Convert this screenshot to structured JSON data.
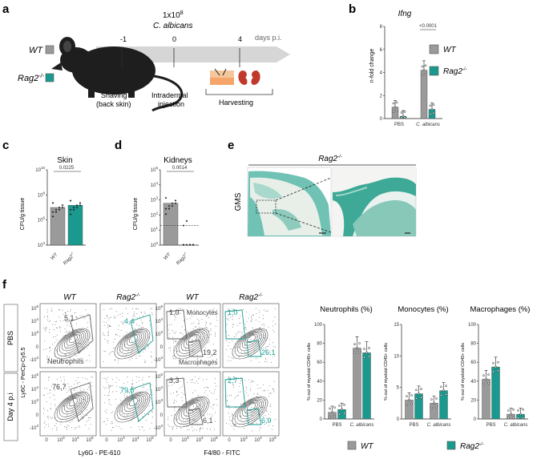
{
  "colors": {
    "wt": "#9a9a9a",
    "rag2": "#1a9a8e",
    "cyan_label": "#1aa39a",
    "timeline": "#d4d4d4",
    "micro_bg": "#cfe3df"
  },
  "panel_a": {
    "label": "a",
    "dose_line1": "1x10",
    "dose_exp": "8",
    "dose_line2": "C. albicans",
    "legend_wt": "WT",
    "legend_rag2": "Rag2",
    "legend_rag2_sup": "-/-",
    "timeline_ticks": [
      "-1",
      "0",
      "4"
    ],
    "timeline_unit": "days p.i.",
    "step1_line1": "Shaving",
    "step1_line2": "(back skin)",
    "step2_line1": "Intradermal",
    "step2_line2": "injection",
    "step3": "Harvesting"
  },
  "panel_b": {
    "label": "b",
    "chart_data": {
      "type": "bar",
      "title": "Ifng",
      "ylabel": "n-fold change",
      "categories": [
        "PBS",
        "C. albicans"
      ],
      "series": [
        {
          "name": "WT",
          "values": [
            1.0,
            4.2
          ]
        },
        {
          "name": "Rag2-/-",
          "values": [
            0.2,
            0.8
          ]
        }
      ],
      "ylim": [
        0,
        8
      ],
      "yticks": [
        "0",
        "2",
        "4",
        "6",
        "8"
      ],
      "annotation": "<0.0001"
    },
    "legend_wt": "WT",
    "legend_rag2": "Rag2",
    "legend_rag2_sup": "-/-"
  },
  "panel_c": {
    "label": "c",
    "chart_data": {
      "type": "bar",
      "title": "Skin",
      "ylabel": "CFU/g tissue",
      "categories": [
        "WT",
        "Rag2-/-"
      ],
      "values": [
        10000000.0,
        15000000.0
      ],
      "scale": "log",
      "ylim": [
        10000.0,
        10000000000.0
      ],
      "yticks": [
        "10^4",
        "10^6",
        "10^8",
        "10^10"
      ],
      "annotation": "0.0225"
    }
  },
  "panel_d": {
    "label": "d",
    "chart_data": {
      "type": "bar",
      "title": "Kidneys",
      "ylabel": "CFU/g tissue",
      "categories": [
        "WT",
        "Rag2-/-"
      ],
      "values": [
        600,
        1
      ],
      "scale": "log",
      "ylim": [
        1,
        100000.0
      ],
      "yticks": [
        "10^0",
        "10^1",
        "10^2",
        "10^3",
        "10^4",
        "10^5"
      ],
      "annotation": "0.0014"
    }
  },
  "panel_e": {
    "label": "e",
    "title": "Rag2",
    "title_sup": "-/-",
    "side_label": "GMS"
  },
  "panel_f": {
    "label": "f",
    "col_wt": "WT",
    "col_rag2": "Rag2",
    "col_rag2_sup": "-/-",
    "row_pbs": "PBS",
    "row_day4": "Day 4 p.i",
    "yaxis_label": "Ly6C - PerCp-Cy5.5",
    "xaxis_label1": "Ly6G - PE-610",
    "xaxis_label2": "F4/80 - FITC",
    "gates": {
      "pbs_wt_neut": "5,1",
      "pbs_rag_neut": "4,4",
      "day4_wt_neut": "76,7",
      "day4_rag_neut": "79,6",
      "pbs_wt_mono": "1,0",
      "pbs_wt_mac": "19,2",
      "pbs_rag_mono": "1,0",
      "pbs_rag_mac": "26,1",
      "day4_wt_mono": "3,3",
      "day4_wt_mac": "6,1",
      "day4_rag_mono": "2,7",
      "day4_rag_mac": "6,9"
    },
    "neut_name": "Neutrophils",
    "mono_name": "Monocytes",
    "mac_name": "Macrophages",
    "charts": [
      {
        "type": "bar",
        "title": "Neutrophils (%)",
        "ylabel": "% out of myeloid CD45+ cells",
        "categories": [
          "PBS",
          "C. albicans"
        ],
        "series": [
          {
            "name": "WT",
            "values": [
              7,
              75
            ]
          },
          {
            "name": "Rag2-/-",
            "values": [
              10,
              70
            ]
          }
        ],
        "ylim": [
          0,
          100
        ],
        "yticks": [
          "0",
          "20",
          "40",
          "60",
          "80",
          "100"
        ]
      },
      {
        "type": "bar",
        "title": "Monocytes (%)",
        "ylabel": "% out of myeloid CD45+ cells",
        "categories": [
          "PBS",
          "C. albicans"
        ],
        "series": [
          {
            "name": "WT",
            "values": [
              3,
              2.5
            ]
          },
          {
            "name": "Rag2-/-",
            "values": [
              4,
              4.5
            ]
          }
        ],
        "ylim": [
          0,
          15
        ],
        "yticks": [
          "0",
          "5",
          "10",
          "15"
        ]
      },
      {
        "type": "bar",
        "title": "Macrophages (%)",
        "ylabel": "% out of myeloid CD45+ cells",
        "categories": [
          "PBS",
          "C. albicans"
        ],
        "series": [
          {
            "name": "WT",
            "values": [
              42,
              5
            ]
          },
          {
            "name": "Rag2-/-",
            "values": [
              55,
              5
            ]
          }
        ],
        "ylim": [
          0,
          100
        ],
        "yticks": [
          "0",
          "20",
          "40",
          "60",
          "80",
          "100"
        ]
      }
    ],
    "legend_wt": "WT",
    "legend_rag2": "Rag2",
    "legend_rag2_sup": "-/-",
    "axis_ticks_y": [
      "10^5",
      "10^4",
      "10^3",
      "0",
      "-10^3"
    ],
    "axis_ticks_x": [
      "0",
      "10^3",
      "10^4",
      "10^5"
    ]
  }
}
